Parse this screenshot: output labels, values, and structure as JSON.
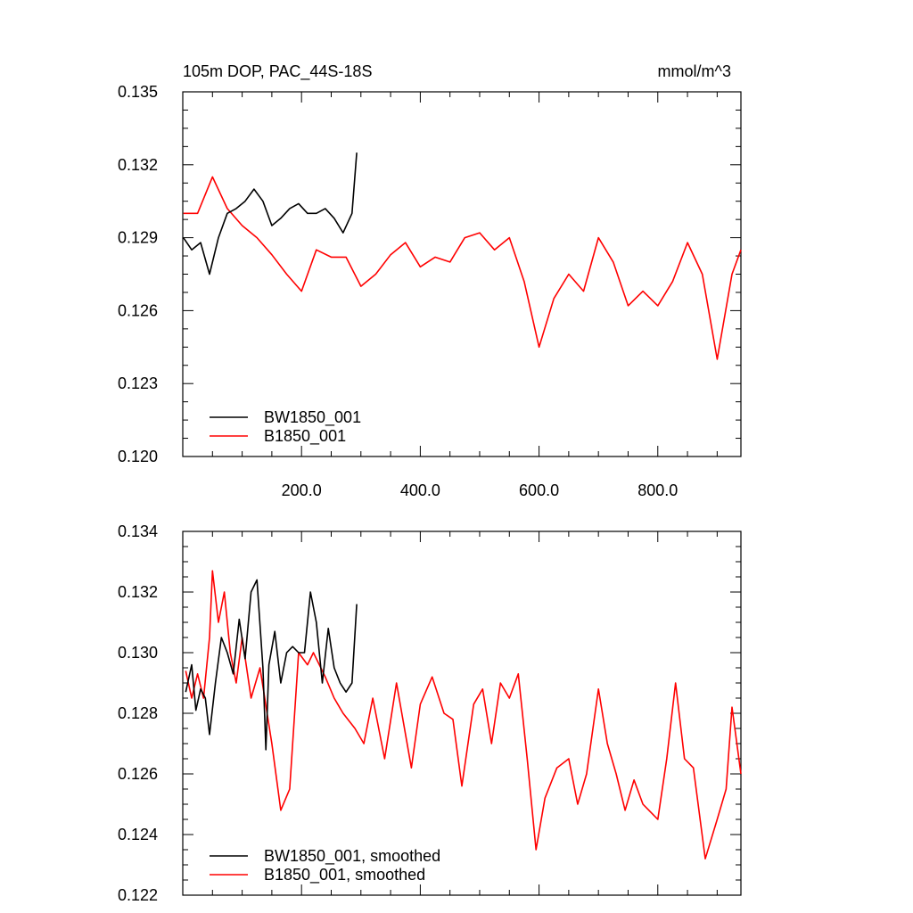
{
  "chart_data": [
    {
      "type": "line",
      "title": "105m DOP, PAC_44S-18S",
      "units": "mmol/m^3",
      "xlim": [
        0,
        940
      ],
      "ylim": [
        0.12,
        0.135
      ],
      "xticks": [
        200,
        400,
        600,
        800
      ],
      "xtick_labels": [
        "200.0",
        "400.0",
        "600.0",
        "800.0"
      ],
      "yticks": [
        0.12,
        0.123,
        0.126,
        0.129,
        0.132,
        0.135
      ],
      "ytick_labels": [
        "0.120",
        "0.123",
        "0.126",
        "0.129",
        "0.132",
        "0.135"
      ],
      "legend_position": "bottom-left",
      "series": [
        {
          "name": "BW1850_001",
          "color": "#000000",
          "x": [
            1,
            15,
            30,
            45,
            60,
            75,
            90,
            105,
            120,
            135,
            150,
            165,
            180,
            195,
            210,
            225,
            240,
            255,
            270,
            285,
            293
          ],
          "values": [
            0.129,
            0.1285,
            0.1288,
            0.1275,
            0.129,
            0.13,
            0.1302,
            0.1305,
            0.131,
            0.1305,
            0.1295,
            0.1298,
            0.1302,
            0.1304,
            0.13,
            0.13,
            0.1302,
            0.1298,
            0.1292,
            0.13,
            0.1325
          ]
        },
        {
          "name": "B1850_001",
          "color": "#ff0000",
          "x": [
            1,
            25,
            50,
            75,
            100,
            125,
            150,
            175,
            200,
            225,
            250,
            275,
            300,
            325,
            350,
            375,
            400,
            425,
            450,
            475,
            500,
            525,
            550,
            575,
            600,
            625,
            650,
            675,
            700,
            725,
            750,
            775,
            800,
            825,
            850,
            875,
            900,
            925,
            940
          ],
          "values": [
            0.13,
            0.13,
            0.1315,
            0.1302,
            0.1295,
            0.129,
            0.1283,
            0.1275,
            0.1268,
            0.1285,
            0.1282,
            0.1282,
            0.127,
            0.1275,
            0.1283,
            0.1288,
            0.1278,
            0.1282,
            0.128,
            0.129,
            0.1292,
            0.1285,
            0.129,
            0.1272,
            0.1245,
            0.1265,
            0.1275,
            0.1268,
            0.129,
            0.128,
            0.1262,
            0.1268,
            0.1262,
            0.1272,
            0.1288,
            0.1275,
            0.124,
            0.1275,
            0.1285
          ]
        }
      ]
    },
    {
      "type": "line",
      "xlim": [
        0,
        940
      ],
      "ylim": [
        0.122,
        0.134
      ],
      "xticks": [
        200,
        400,
        600,
        800
      ],
      "yticks": [
        0.122,
        0.124,
        0.126,
        0.128,
        0.13,
        0.132,
        0.134
      ],
      "ytick_labels": [
        "0.122",
        "0.124",
        "0.126",
        "0.128",
        "0.130",
        "0.132",
        "0.134"
      ],
      "legend_position": "bottom-left",
      "series": [
        {
          "name": "BW1850_001, smoothed",
          "color": "#000000",
          "x": [
            5,
            15,
            22,
            30,
            38,
            45,
            55,
            65,
            75,
            85,
            95,
            105,
            115,
            125,
            135,
            140,
            145,
            155,
            165,
            175,
            185,
            195,
            205,
            215,
            225,
            235,
            245,
            255,
            265,
            275,
            285,
            293
          ],
          "values": [
            0.1287,
            0.1296,
            0.1281,
            0.1288,
            0.1285,
            0.1273,
            0.129,
            0.1305,
            0.13,
            0.1293,
            0.1311,
            0.1298,
            0.132,
            0.1324,
            0.1295,
            0.1268,
            0.1296,
            0.1307,
            0.129,
            0.13,
            0.1302,
            0.13,
            0.13,
            0.132,
            0.131,
            0.129,
            0.1308,
            0.1295,
            0.129,
            0.1287,
            0.129,
            0.1316
          ]
        },
        {
          "name": "B1850_001, smoothed",
          "color": "#ff0000",
          "x": [
            5,
            15,
            25,
            35,
            45,
            50,
            60,
            70,
            80,
            90,
            100,
            115,
            130,
            150,
            165,
            180,
            195,
            210,
            220,
            240,
            255,
            270,
            290,
            305,
            320,
            340,
            360,
            385,
            400,
            420,
            440,
            455,
            470,
            490,
            505,
            520,
            535,
            550,
            565,
            580,
            595,
            610,
            630,
            650,
            665,
            680,
            700,
            715,
            730,
            745,
            760,
            775,
            790,
            800,
            815,
            830,
            845,
            860,
            880,
            900,
            915,
            925,
            940
          ],
          "values": [
            0.1294,
            0.1285,
            0.1293,
            0.1285,
            0.1305,
            0.1327,
            0.131,
            0.132,
            0.13,
            0.129,
            0.1305,
            0.1285,
            0.1295,
            0.127,
            0.1248,
            0.1255,
            0.13,
            0.1296,
            0.13,
            0.1292,
            0.1285,
            0.128,
            0.1275,
            0.127,
            0.1285,
            0.1265,
            0.129,
            0.1262,
            0.1283,
            0.1292,
            0.128,
            0.1278,
            0.1256,
            0.1283,
            0.1288,
            0.127,
            0.129,
            0.1285,
            0.1293,
            0.1265,
            0.1235,
            0.1252,
            0.1262,
            0.1265,
            0.125,
            0.126,
            0.1288,
            0.127,
            0.126,
            0.1248,
            0.1258,
            0.125,
            0.1247,
            0.1245,
            0.1265,
            0.129,
            0.1265,
            0.1262,
            0.1232,
            0.1245,
            0.1255,
            0.1282,
            0.126
          ]
        }
      ]
    }
  ]
}
